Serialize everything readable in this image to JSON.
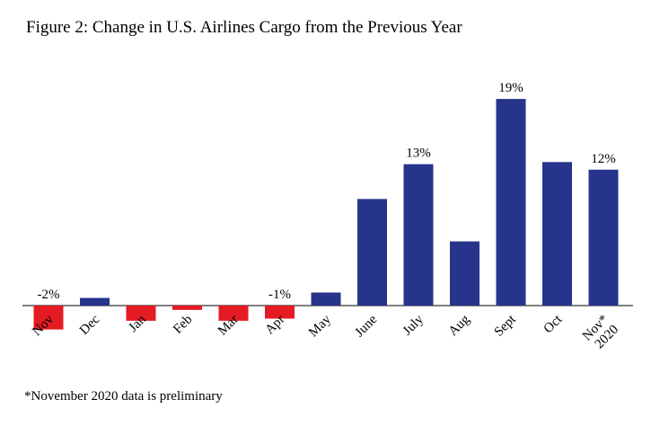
{
  "title": "Figure 2: Change in U.S. Airlines Cargo from the Previous Year",
  "footnote": "*November 2020 data is preliminary",
  "chart_data": {
    "type": "bar",
    "title": "Figure 2: Change in U.S. Airlines Cargo from the Previous Year",
    "xlabel": "",
    "ylabel": "",
    "categories": [
      "Nov",
      "Dec",
      "Jan",
      "Feb",
      "Mar",
      "Apr",
      "May",
      "June",
      "July",
      "Aug",
      "Sept",
      "Oct",
      "Nov*\n2020"
    ],
    "values": [
      -2.2,
      0.7,
      -1.4,
      -0.4,
      -1.4,
      -1.2,
      1.2,
      9.8,
      13,
      5.9,
      19,
      13.2,
      12.5
    ],
    "data_labels": [
      "-2%",
      "",
      "",
      "",
      "",
      "-1%",
      "",
      "",
      "13%",
      "",
      "19%",
      "",
      "12%"
    ],
    "ylim": [
      -3,
      20
    ],
    "grid": false,
    "legend": "none",
    "colors": {
      "positive": "#27348b",
      "negative": "#e41b23",
      "axis": "#000000"
    }
  }
}
